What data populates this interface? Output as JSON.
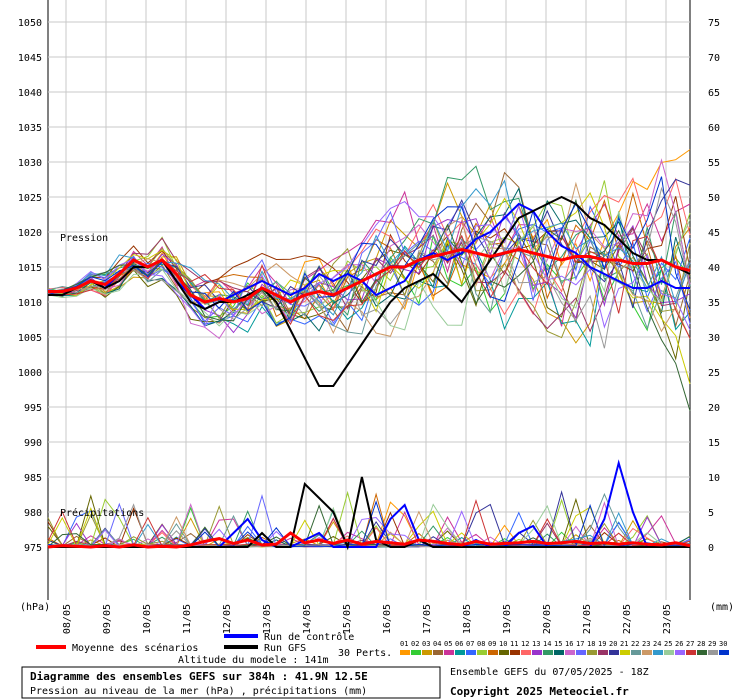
{
  "chart_data": {
    "type": "line",
    "left_axis_ticks": [
      1050,
      1045,
      1040,
      1035,
      1030,
      1025,
      1020,
      1015,
      1010,
      1005,
      1000,
      995,
      990,
      985,
      980,
      975
    ],
    "right_axis_ticks": [
      75,
      70,
      65,
      60,
      55,
      50,
      45,
      40,
      35,
      30,
      25,
      20,
      15,
      10,
      5,
      0
    ],
    "left_unit": "(hPa)",
    "right_unit": "(mm)",
    "x_labels": [
      "08/05",
      "09/05",
      "10/05",
      "11/05",
      "12/05",
      "13/05",
      "14/05",
      "15/05",
      "16/05",
      "17/05",
      "18/05",
      "19/05",
      "20/05",
      "21/05",
      "22/05",
      "23/05"
    ],
    "pressure_label": "Pression",
    "precip_label": "Précipitations",
    "mean_series": {
      "name": "Moyenne des scénarios",
      "values": [
        1011.5,
        1011.5,
        1012,
        1013,
        1012.5,
        1014,
        1016,
        1015,
        1016,
        1014,
        1011,
        1010,
        1010.5,
        1010,
        1010.5,
        1012,
        1011,
        1010,
        1011,
        1011.5,
        1011,
        1012,
        1013,
        1014,
        1015,
        1015,
        1016,
        1016.5,
        1017,
        1017.5,
        1017,
        1016.5,
        1017,
        1017.5,
        1017,
        1016.5,
        1016,
        1016.5,
        1016.5,
        1016,
        1016,
        1015.5,
        1015.5,
        1016,
        1015,
        1014.5
      ]
    },
    "control_series": {
      "name": "Run de contrôle",
      "values": [
        1011,
        1011,
        1012,
        1013,
        1012,
        1014,
        1016,
        1015,
        1016,
        1013,
        1011,
        1009,
        1010,
        1011,
        1012,
        1013,
        1012,
        1011,
        1012,
        1014,
        1013,
        1014,
        1013,
        1011,
        1012,
        1013,
        1016,
        1017,
        1016,
        1017,
        1019,
        1020,
        1022,
        1024,
        1023,
        1020,
        1018,
        1017,
        1015,
        1014,
        1013,
        1012,
        1012,
        1013,
        1012,
        1012
      ]
    },
    "gfs_series": {
      "name": "Run GFS",
      "values": [
        1011,
        1011,
        1012,
        1013,
        1012,
        1013,
        1015,
        1015,
        1016,
        1013,
        1010,
        1009,
        1010,
        1010,
        1011,
        1012,
        1010,
        1006,
        1002,
        998,
        998,
        1001,
        1004,
        1007,
        1010,
        1012,
        1013,
        1014,
        1012,
        1010,
        1013,
        1016,
        1019,
        1022,
        1023,
        1024,
        1025,
        1024,
        1022,
        1021,
        1019,
        1017,
        1016,
        1016,
        1015,
        1014
      ]
    },
    "mean_precip": [
      0,
      0.2,
      0.1,
      0,
      0.2,
      0,
      0.3,
      0,
      0.1,
      0,
      0.3,
      0.8,
      1.2,
      0.5,
      1,
      0.3,
      0.4,
      2,
      0.6,
      1,
      0.5,
      1,
      0.4,
      0.8,
      0.6,
      0.4,
      1,
      0.8,
      0.5,
      0.3,
      0.8,
      0.4,
      0.5,
      0.6,
      0.8,
      0.5,
      0.6,
      0.8,
      0.5,
      0.6,
      0.4,
      0.6,
      0.4,
      0.3,
      0.6,
      0.2
    ],
    "control_precip": [
      0,
      0,
      0,
      0,
      0,
      0,
      0,
      0,
      0,
      0,
      0,
      0,
      0,
      2,
      4,
      1,
      0,
      0,
      1,
      2,
      0,
      0,
      0,
      0,
      4,
      6,
      1,
      0,
      0,
      0,
      1,
      0,
      0,
      2,
      3,
      0,
      0,
      0,
      0,
      4,
      12,
      5,
      0,
      0,
      0,
      0
    ],
    "gfs_precip": [
      0,
      0,
      0,
      0,
      0,
      0,
      0,
      0,
      0,
      0,
      0,
      0,
      0,
      0,
      0,
      2,
      0,
      0,
      9,
      7,
      5,
      0,
      10,
      1,
      0,
      0,
      1,
      0,
      0,
      0,
      0,
      0,
      0,
      0,
      0,
      0,
      0,
      0,
      0,
      0,
      0,
      0,
      0,
      0,
      0,
      0
    ],
    "hours_step": 9
  },
  "legend": {
    "mean": "Moyenne des scénarios",
    "control": "Run de contrôle",
    "gfs": "Run GFS",
    "perts": "30 Perts.",
    "altitude": "Altitude du modele : 141m",
    "pert_numbers": [
      "01",
      "02",
      "03",
      "04",
      "05",
      "06",
      "07",
      "08",
      "09",
      "10",
      "11",
      "12",
      "13",
      "14",
      "15",
      "16",
      "17",
      "18",
      "19",
      "20",
      "21",
      "22",
      "23",
      "24",
      "25",
      "26",
      "27",
      "28",
      "29",
      "30"
    ],
    "pert_colors": [
      "#ff9900",
      "#33cc33",
      "#cc9900",
      "#996633",
      "#cc3399",
      "#009999",
      "#3366ff",
      "#99cc33",
      "#cc6600",
      "#666600",
      "#993300",
      "#ff6666",
      "#9933cc",
      "#339966",
      "#006666",
      "#cc66cc",
      "#6666ff",
      "#999933",
      "#993366",
      "#333399",
      "#cccc00",
      "#669999",
      "#cc9966",
      "#3399cc",
      "#99cc99",
      "#9966ff",
      "#cc3333",
      "#336633",
      "#999999",
      "#0033cc"
    ]
  },
  "info": {
    "title": "Diagramme des ensembles GEFS sur 384h : 41.9N 12.5E",
    "subtitle": "Pression au niveau de la mer (hPa) , précipitations (mm)",
    "ensemble": "Ensemble GEFS du 07/05/2025 - 18Z",
    "copyright": "Copyright 2025 Meteociel.fr"
  },
  "colors": {
    "mean": "#ff0000",
    "control": "#0000ff",
    "gfs": "#000000",
    "grid": "#c8c8c8"
  }
}
